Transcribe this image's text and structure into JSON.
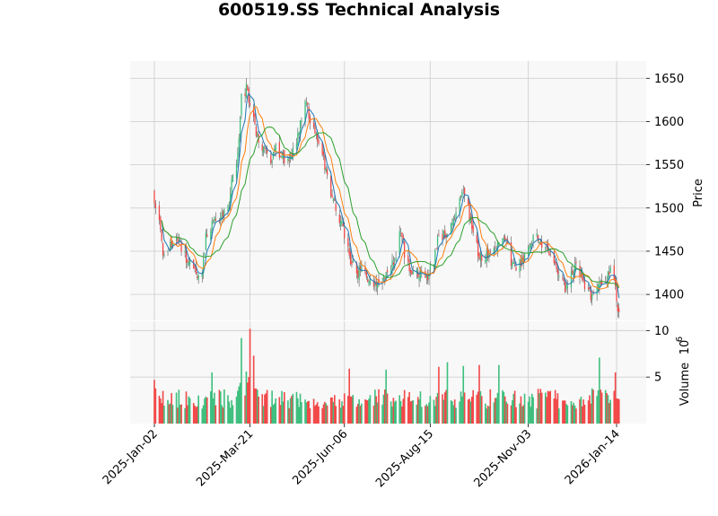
{
  "chart_data": {
    "type": "candlestick",
    "title": "600519.SS Technical Analysis",
    "colors": {
      "up": "#3ebf7e",
      "down": "#f24848",
      "ma_fast": "#1f77b4",
      "ma_mid": "#ff7f0e",
      "ma_slow": "#2ca02c",
      "panel_bg": "#f8f8f8",
      "grid": "#d0d0d0"
    },
    "price_panel": {
      "ylabel": "Price",
      "ylim": [
        1370,
        1670
      ],
      "yticks": [
        1400,
        1450,
        1500,
        1550,
        1600,
        1650
      ],
      "ytick_labels": [
        "1400",
        "1450",
        "1500",
        "1550",
        "1600",
        "1650"
      ]
    },
    "volume_panel": {
      "ylabel": "Volume",
      "unit_multiplier": "10",
      "unit_exponent": "6",
      "ylim": [
        0,
        11
      ],
      "yticks": [
        5,
        10
      ],
      "ytick_labels": [
        "5",
        "10"
      ]
    },
    "x_axis": {
      "start_date": "2025-01-02",
      "tick_labels": [
        "2025-Jan-02",
        "2025-Mar-21",
        "2025-Jun-06",
        "2025-Aug-15",
        "2025-Nov-03",
        "2026-Jan-14"
      ],
      "tick_dates": [
        "2025-01-02",
        "2025-03-21",
        "2025-06-06",
        "2025-08-15",
        "2025-11-03",
        "2026-01-14"
      ]
    },
    "price_anchors": [
      [
        "2025-01-02",
        1508
      ],
      [
        "2025-01-06",
        1490
      ],
      [
        "2025-01-09",
        1448
      ],
      [
        "2025-01-15",
        1455
      ],
      [
        "2025-01-21",
        1465
      ],
      [
        "2025-01-24",
        1452
      ],
      [
        "2025-02-06",
        1420
      ],
      [
        "2025-02-11",
        1435
      ],
      [
        "2025-02-13",
        1465
      ],
      [
        "2025-02-18",
        1482
      ],
      [
        "2025-02-25",
        1490
      ],
      [
        "2025-03-04",
        1500
      ],
      [
        "2025-03-06",
        1530
      ],
      [
        "2025-03-11",
        1560
      ],
      [
        "2025-03-14",
        1625
      ],
      [
        "2025-03-18",
        1640
      ],
      [
        "2025-03-24",
        1600
      ],
      [
        "2025-03-28",
        1580
      ],
      [
        "2025-04-03",
        1565
      ],
      [
        "2025-04-07",
        1545
      ],
      [
        "2025-04-10",
        1570
      ],
      [
        "2025-04-16",
        1560
      ],
      [
        "2025-04-22",
        1555
      ],
      [
        "2025-04-28",
        1580
      ],
      [
        "2025-05-06",
        1625
      ],
      [
        "2025-05-08",
        1605
      ],
      [
        "2025-05-13",
        1585
      ],
      [
        "2025-05-19",
        1560
      ],
      [
        "2025-05-23",
        1535
      ],
      [
        "2025-05-28",
        1510
      ],
      [
        "2025-06-04",
        1480
      ],
      [
        "2025-06-10",
        1445
      ],
      [
        "2025-06-16",
        1425
      ],
      [
        "2025-06-23",
        1430
      ],
      [
        "2025-06-27",
        1410
      ],
      [
        "2025-07-03",
        1415
      ],
      [
        "2025-07-10",
        1420
      ],
      [
        "2025-07-17",
        1440
      ],
      [
        "2025-07-22",
        1480
      ],
      [
        "2025-07-25",
        1445
      ],
      [
        "2025-07-31",
        1420
      ],
      [
        "2025-08-07",
        1425
      ],
      [
        "2025-08-13",
        1420
      ],
      [
        "2025-08-19",
        1445
      ],
      [
        "2025-08-22",
        1475
      ],
      [
        "2025-08-27",
        1465
      ],
      [
        "2025-09-02",
        1480
      ],
      [
        "2025-09-05",
        1495
      ],
      [
        "2025-09-11",
        1520
      ],
      [
        "2025-09-15",
        1500
      ],
      [
        "2025-09-18",
        1475
      ],
      [
        "2025-09-24",
        1445
      ],
      [
        "2025-09-30",
        1445
      ],
      [
        "2025-10-10",
        1460
      ],
      [
        "2025-10-14",
        1470
      ],
      [
        "2025-10-20",
        1440
      ],
      [
        "2025-10-24",
        1430
      ],
      [
        "2025-10-30",
        1440
      ],
      [
        "2025-11-04",
        1460
      ],
      [
        "2025-11-10",
        1470
      ],
      [
        "2025-11-14",
        1460
      ],
      [
        "2025-11-19",
        1450
      ],
      [
        "2025-11-25",
        1430
      ],
      [
        "2025-11-28",
        1420
      ],
      [
        "2025-12-03",
        1410
      ],
      [
        "2025-12-08",
        1420
      ],
      [
        "2025-12-12",
        1435
      ],
      [
        "2025-12-17",
        1415
      ],
      [
        "2025-12-22",
        1405
      ],
      [
        "2025-12-25",
        1395
      ],
      [
        "2025-12-31",
        1410
      ],
      [
        "2026-01-06",
        1420
      ],
      [
        "2026-01-09",
        1425
      ],
      [
        "2026-01-13",
        1415
      ],
      [
        "2026-01-14",
        1390
      ],
      [
        "2026-01-16",
        1380
      ]
    ],
    "volume_peaks": [
      [
        "2025-03-14",
        9.2
      ],
      [
        "2025-03-21",
        10.2
      ],
      [
        "2025-03-24",
        7.3
      ],
      [
        "2025-02-18",
        5.5
      ],
      [
        "2025-03-18",
        5.6
      ],
      [
        "2025-01-02",
        4.7
      ],
      [
        "2025-06-10",
        5.9
      ],
      [
        "2025-07-10",
        5.8
      ],
      [
        "2025-08-22",
        6.1
      ],
      [
        "2025-08-29",
        6.6
      ],
      [
        "2025-09-11",
        6.2
      ],
      [
        "2025-09-24",
        6.3
      ],
      [
        "2025-10-10",
        6.3
      ],
      [
        "2025-12-31",
        7.1
      ],
      [
        "2026-01-13",
        5.5
      ]
    ],
    "moving_averages": [
      {
        "window": 5,
        "color": "#1f77b4"
      },
      {
        "window": 10,
        "color": "#ff7f0e"
      },
      {
        "window": 20,
        "color": "#2ca02c"
      }
    ],
    "grid": true
  }
}
